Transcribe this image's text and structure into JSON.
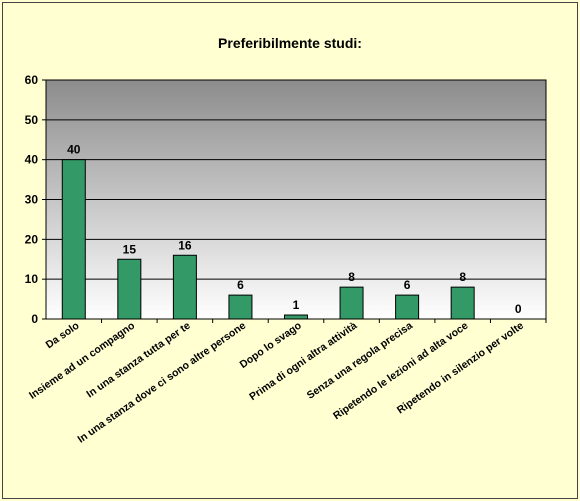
{
  "chart_data": {
    "type": "bar",
    "title": "Preferibilmente studi:",
    "categories": [
      "Da solo",
      "Insieme ad un compagno",
      "In una stanza tutta per te",
      "In una stanza dove ci sono altre persone",
      "Dopo lo svago",
      "Prima di ogni altra attività",
      "Senza una regola precisa",
      "Ripetendo le lezioni ad alta voce",
      "Ripetendo in silenzio per volte"
    ],
    "values": [
      40,
      15,
      16,
      6,
      1,
      8,
      6,
      8,
      0
    ],
    "data_labels": [
      "40",
      "15",
      "16",
      "6",
      "1",
      "8",
      "6",
      "8",
      "0"
    ],
    "ylim": [
      0,
      60
    ],
    "yticks": [
      0,
      10,
      20,
      30,
      40,
      50,
      60
    ],
    "xlabel": "",
    "ylabel": "",
    "grid": true,
    "bar_color": "#339966",
    "plot_background": "gradient gray to white"
  }
}
